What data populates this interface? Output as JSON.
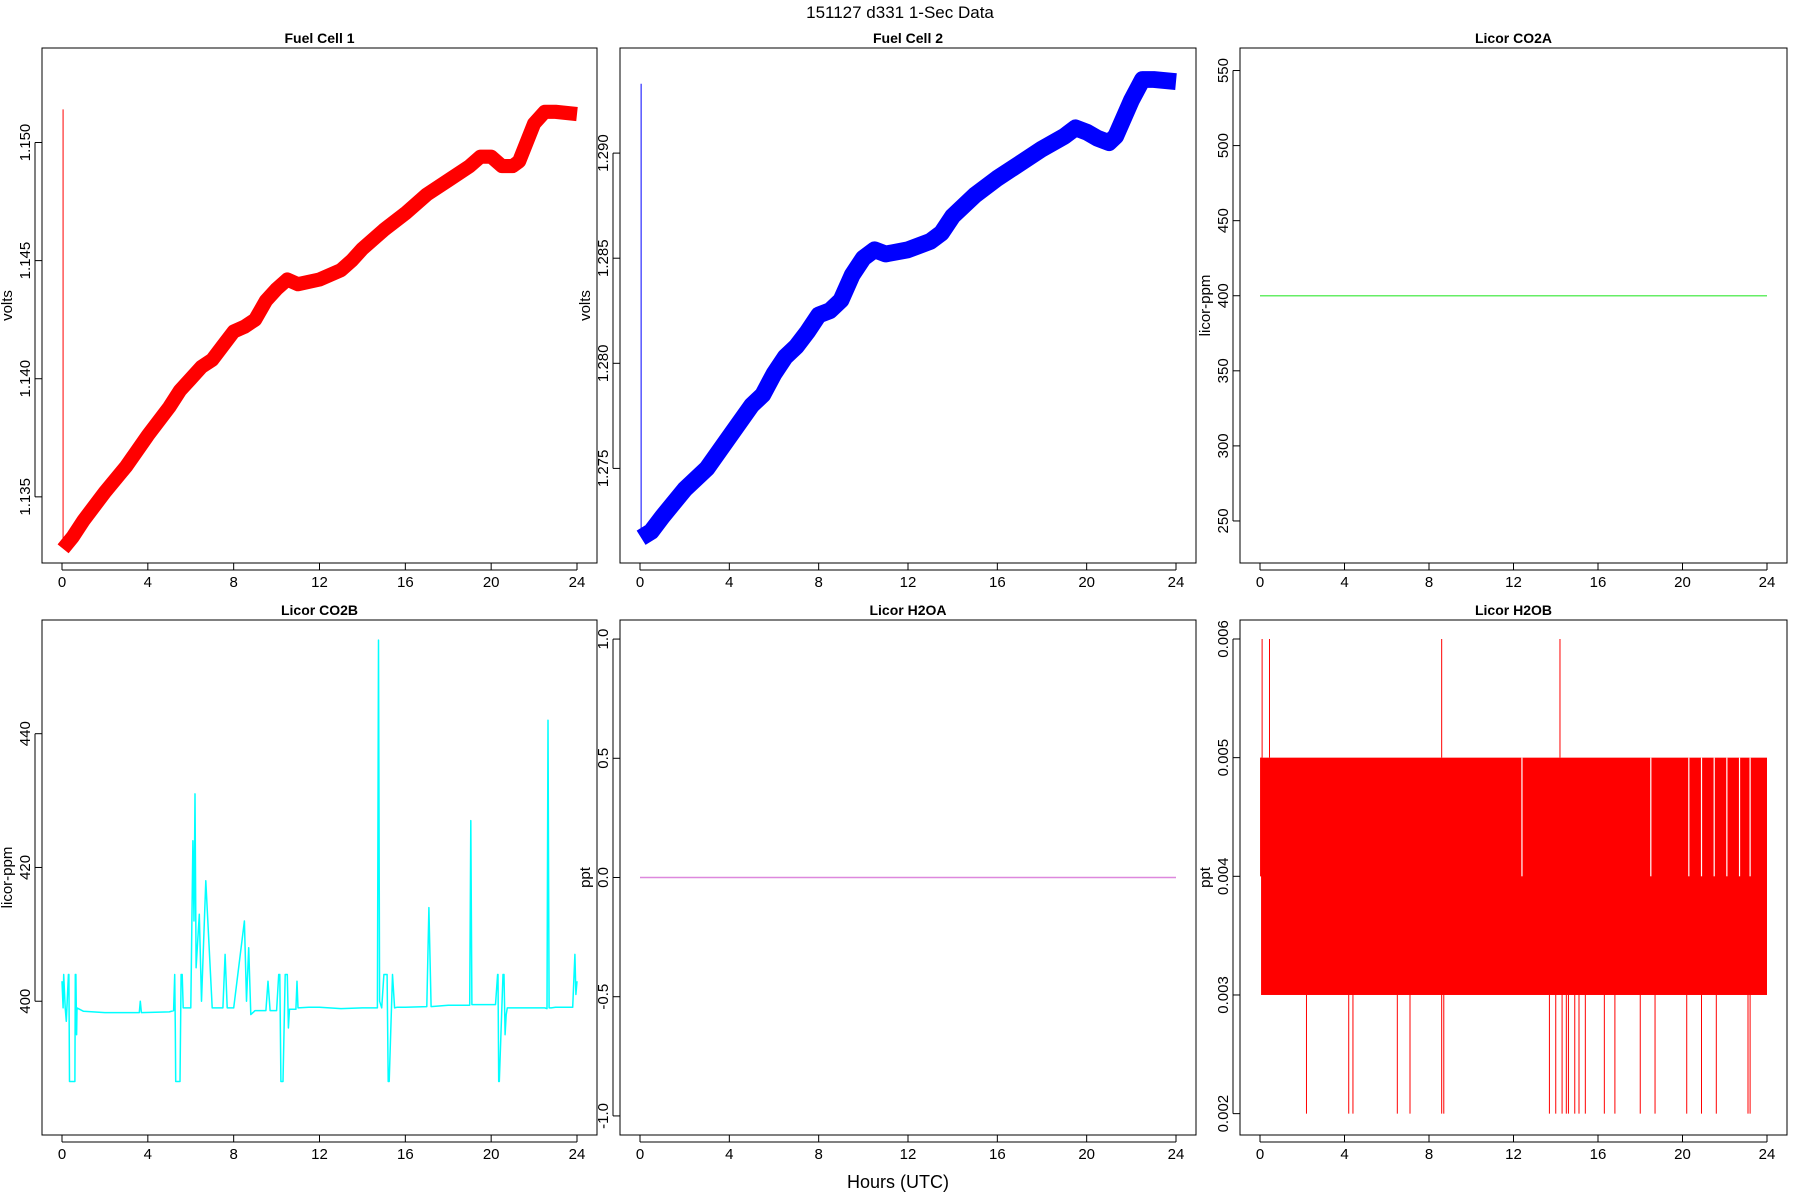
{
  "page": {
    "title": "151127   d331   1-Sec Data",
    "xlabel": "Hours (UTC)"
  },
  "chart_data": [
    {
      "type": "line",
      "title": "Fuel Cell 1",
      "ylabel": "volts",
      "color": "#ff0000",
      "xlim": [
        0,
        24
      ],
      "ylim": [
        1.1322,
        1.154
      ],
      "xticks": [
        0,
        4,
        8,
        12,
        16,
        20,
        24
      ],
      "yticks": [
        1.135,
        1.14,
        1.145,
        1.15
      ],
      "ytick_labels": [
        "1.135",
        "1.140",
        "1.145",
        "1.150"
      ],
      "band": 0.0003,
      "spikes": [
        {
          "x": 0.05,
          "y_from": 1.133,
          "y_to": 1.1514
        }
      ],
      "x": [
        0.05,
        0.5,
        1,
        2,
        3,
        4,
        5,
        5.5,
        6,
        6.5,
        7,
        7.5,
        8,
        8.5,
        9,
        9.5,
        10,
        10.5,
        11,
        12,
        13,
        13.5,
        14,
        15,
        16,
        17,
        18,
        19,
        19.5,
        20,
        20.5,
        21,
        21.3,
        22,
        22.5,
        23,
        24
      ],
      "y": [
        1.1328,
        1.1333,
        1.134,
        1.1352,
        1.1363,
        1.1376,
        1.1388,
        1.1395,
        1.14,
        1.1405,
        1.1408,
        1.1414,
        1.142,
        1.1422,
        1.1425,
        1.1433,
        1.1438,
        1.1442,
        1.144,
        1.1442,
        1.1446,
        1.145,
        1.1455,
        1.1463,
        1.147,
        1.1478,
        1.1484,
        1.149,
        1.1494,
        1.1494,
        1.149,
        1.149,
        1.1492,
        1.1508,
        1.1513,
        1.1513,
        1.1512
      ]
    },
    {
      "type": "line",
      "title": "Fuel Cell 2",
      "ylabel": "volts",
      "color": "#0000ff",
      "xlim": [
        0,
        24
      ],
      "ylim": [
        1.2705,
        1.295
      ],
      "xticks": [
        0,
        4,
        8,
        12,
        16,
        20,
        24
      ],
      "yticks": [
        1.275,
        1.28,
        1.285,
        1.29
      ],
      "ytick_labels": [
        "1.275",
        "1.280",
        "1.285",
        "1.290"
      ],
      "band": 0.0004,
      "spikes": [
        {
          "x": 0.05,
          "y_from": 1.272,
          "y_to": 1.2933
        }
      ],
      "x": [
        0.05,
        0.5,
        1,
        2,
        3,
        4,
        5,
        5.5,
        6,
        6.5,
        7,
        7.5,
        8,
        8.5,
        9,
        9.5,
        10,
        10.5,
        11,
        12,
        13,
        13.5,
        14,
        15,
        16,
        17,
        18,
        19,
        19.5,
        20,
        20.5,
        21,
        21.3,
        22,
        22.5,
        23,
        24
      ],
      "y": [
        1.2717,
        1.272,
        1.2727,
        1.274,
        1.275,
        1.2765,
        1.278,
        1.2785,
        1.2795,
        1.2803,
        1.2808,
        1.2815,
        1.2823,
        1.2825,
        1.283,
        1.2842,
        1.285,
        1.2854,
        1.2852,
        1.2854,
        1.2858,
        1.2862,
        1.287,
        1.288,
        1.2888,
        1.2895,
        1.2902,
        1.2908,
        1.2912,
        1.291,
        1.2907,
        1.2905,
        1.2908,
        1.2925,
        1.2935,
        1.2935,
        1.2934
      ]
    },
    {
      "type": "line",
      "title": "Licor CO2A",
      "ylabel": "licor-ppm",
      "color": "#66ee66",
      "xlim": [
        0,
        24
      ],
      "ylim": [
        222,
        565
      ],
      "xticks": [
        0,
        4,
        8,
        12,
        16,
        20,
        24
      ],
      "yticks": [
        250,
        300,
        350,
        400,
        450,
        500,
        550
      ],
      "ytick_labels": [
        "250",
        "300",
        "350",
        "400",
        "450",
        "500",
        "550"
      ],
      "x": [
        0,
        24
      ],
      "y": [
        400,
        400
      ]
    },
    {
      "type": "line",
      "title": "Licor CO2B",
      "ylabel": "licor-ppm",
      "color": "#00ffff",
      "xlim": [
        0,
        24
      ],
      "ylim": [
        380,
        457
      ],
      "xticks": [
        0,
        4,
        8,
        12,
        16,
        20,
        24
      ],
      "yticks": [
        400,
        420,
        440
      ],
      "ytick_labels": [
        "400",
        "420",
        "440"
      ],
      "x": [
        0,
        0.05,
        0.08,
        0.15,
        0.2,
        0.3,
        0.32,
        0.35,
        0.38,
        0.6,
        0.62,
        0.65,
        0.68,
        0.7,
        1,
        2,
        3.6,
        3.65,
        3.7,
        5,
        5.2,
        5.25,
        5.28,
        5.3,
        5.33,
        5.5,
        5.55,
        5.6,
        5.65,
        6,
        6.1,
        6.15,
        6.2,
        6.25,
        6.4,
        6.5,
        6.7,
        7,
        7.5,
        7.6,
        7.7,
        8,
        8.5,
        8.6,
        8.7,
        8.8,
        9,
        9.5,
        9.6,
        9.7,
        10,
        10.1,
        10.15,
        10.2,
        10.3,
        10.4,
        10.5,
        10.55,
        10.6,
        10.9,
        10.95,
        11,
        11.5,
        12,
        13,
        14,
        14.5,
        14.7,
        14.75,
        14.8,
        14.9,
        15,
        15.15,
        15.2,
        15.25,
        15.4,
        15.5,
        15.6,
        15.65,
        16,
        17,
        17.1,
        17.2,
        18,
        19,
        19.05,
        19.1,
        20,
        20.2,
        20.3,
        20.32,
        20.35,
        20.38,
        20.55,
        20.6,
        20.65,
        20.7,
        20.75,
        20.8,
        21,
        21.2,
        22,
        22.5,
        22.6,
        22.65,
        22.7,
        22.8,
        23,
        23.8,
        23.9,
        23.95,
        24
      ],
      "y": [
        403,
        399,
        404,
        399,
        397,
        404,
        404,
        388,
        388,
        388,
        404,
        404,
        395,
        399,
        398.5,
        398.3,
        398.3,
        400,
        398.3,
        398.4,
        398.6,
        404,
        396,
        388,
        388,
        388,
        404,
        404,
        399,
        399,
        424,
        412,
        431,
        405,
        413,
        400,
        418,
        399,
        399,
        407,
        399,
        399,
        412,
        400,
        408,
        398,
        398.6,
        398.6,
        403,
        398.6,
        398.6,
        404,
        404,
        388,
        388,
        404,
        404,
        396,
        398.8,
        398.8,
        403,
        399,
        399.1,
        399.1,
        398.9,
        399,
        399,
        399,
        454,
        400,
        399,
        404,
        404,
        388,
        388,
        404,
        399,
        399.1,
        399.1,
        399.1,
        399.2,
        414,
        399.2,
        399.4,
        399.4,
        427,
        399.5,
        399.5,
        399.5,
        404,
        404,
        388,
        388,
        404,
        404,
        395,
        398,
        399,
        399,
        399,
        399,
        399,
        399,
        398.9,
        442,
        399,
        399,
        399.1,
        399.1,
        407,
        401,
        403
      ]
    },
    {
      "type": "line",
      "title": "Licor H2OA",
      "ylabel": "ppt",
      "color": "#dd88dd",
      "xlim": [
        0,
        24
      ],
      "ylim": [
        -1.08,
        1.08
      ],
      "xticks": [
        0,
        4,
        8,
        12,
        16,
        20,
        24
      ],
      "yticks": [
        -1.0,
        -0.5,
        0.0,
        0.5,
        1.0
      ],
      "ytick_labels": [
        "-1.0",
        "-0.5",
        "0.0",
        "0.5",
        "1.0"
      ],
      "x": [
        0,
        24
      ],
      "y": [
        0,
        0
      ]
    },
    {
      "type": "line",
      "title": "Licor H2OB",
      "ylabel": "ppt",
      "color": "#ff0000",
      "xlim": [
        0,
        24
      ],
      "ylim": [
        0.00182,
        0.00616
      ],
      "xticks": [
        0,
        4,
        8,
        12,
        16,
        20,
        24
      ],
      "yticks": [
        0.002,
        0.003,
        0.004,
        0.005,
        0.006
      ],
      "ytick_labels": [
        "0.002",
        "0.003",
        "0.004",
        "0.005",
        "0.006"
      ],
      "fill_band": {
        "x_from": 0.05,
        "x_to": 24,
        "y_from": 0.003,
        "y_to": 0.005
      },
      "spikes_up": [
        0.1,
        0.45,
        8.6,
        14.2
      ],
      "spikes_up_to": 0.006,
      "spikes_down": [
        2.2,
        4.2,
        4.4,
        6.5,
        7.1,
        8.6,
        8.7,
        13.7,
        14.0,
        14.3,
        14.5,
        14.6,
        14.9,
        15.1,
        15.4,
        16.3,
        16.8,
        18.0,
        18.7,
        20.2,
        20.9,
        21.6,
        23.1,
        23.2
      ],
      "spikes_down_to": 0.002,
      "white_gaps": [
        12.4,
        18.5,
        20.3,
        20.9,
        21.5,
        22.1,
        22.7,
        23.2
      ],
      "white_gap_range": [
        0.004,
        0.005
      ]
    }
  ]
}
